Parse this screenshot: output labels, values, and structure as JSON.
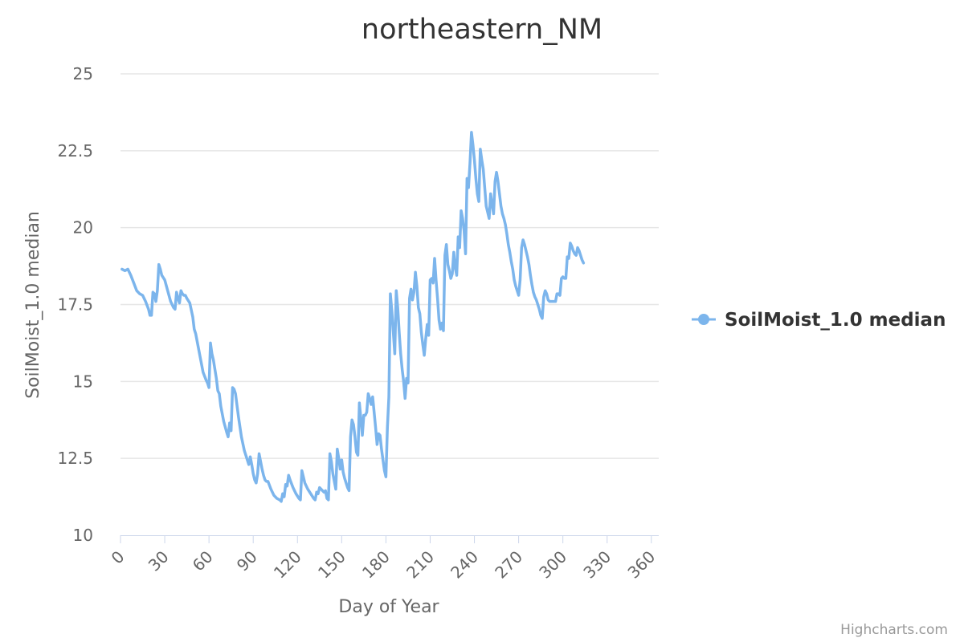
{
  "chart_data": {
    "type": "line",
    "title": "northeastern_NM",
    "xlabel": "Day of Year",
    "ylabel": "SoilMoist_1.0 median",
    "xlim": [
      0,
      365
    ],
    "ylim": [
      10,
      25
    ],
    "x_ticks": [
      "0",
      "30",
      "60",
      "90",
      "120",
      "150",
      "180",
      "210",
      "240",
      "270",
      "300",
      "330",
      "360"
    ],
    "y_ticks": [
      "10",
      "12.5",
      "15",
      "17.5",
      "20",
      "22.5",
      "25"
    ],
    "grid": "horizontal",
    "legend_position": "right",
    "series": [
      {
        "name": "SoilMoist_1.0 median",
        "color": "#7cb5ec",
        "points": [
          [
            1,
            18.65
          ],
          [
            3,
            18.6
          ],
          [
            5,
            18.65
          ],
          [
            7,
            18.45
          ],
          [
            9,
            18.2
          ],
          [
            11,
            17.95
          ],
          [
            13,
            17.85
          ],
          [
            15,
            17.8
          ],
          [
            17,
            17.6
          ],
          [
            19,
            17.35
          ],
          [
            20,
            17.15
          ],
          [
            21,
            17.15
          ],
          [
            22,
            17.9
          ],
          [
            23,
            17.85
          ],
          [
            24,
            17.6
          ],
          [
            25,
            17.95
          ],
          [
            26,
            18.8
          ],
          [
            27,
            18.65
          ],
          [
            28,
            18.45
          ],
          [
            30,
            18.3
          ],
          [
            32,
            17.95
          ],
          [
            34,
            17.6
          ],
          [
            36,
            17.4
          ],
          [
            37,
            17.35
          ],
          [
            38,
            17.9
          ],
          [
            39,
            17.7
          ],
          [
            40,
            17.55
          ],
          [
            41,
            17.95
          ],
          [
            42,
            17.85
          ],
          [
            43,
            17.8
          ],
          [
            44,
            17.8
          ],
          [
            45,
            17.7
          ],
          [
            47,
            17.55
          ],
          [
            49,
            17.1
          ],
          [
            50,
            16.7
          ],
          [
            51,
            16.55
          ],
          [
            52,
            16.3
          ],
          [
            54,
            15.8
          ],
          [
            56,
            15.3
          ],
          [
            58,
            15.05
          ],
          [
            59,
            14.95
          ],
          [
            60,
            14.8
          ],
          [
            61,
            16.25
          ],
          [
            62,
            15.9
          ],
          [
            63,
            15.7
          ],
          [
            65,
            15.1
          ],
          [
            66,
            14.7
          ],
          [
            67,
            14.6
          ],
          [
            68,
            14.2
          ],
          [
            70,
            13.7
          ],
          [
            72,
            13.35
          ],
          [
            73,
            13.2
          ],
          [
            74,
            13.65
          ],
          [
            75,
            13.4
          ],
          [
            76,
            14.8
          ],
          [
            77,
            14.75
          ],
          [
            78,
            14.6
          ],
          [
            80,
            13.85
          ],
          [
            82,
            13.2
          ],
          [
            84,
            12.75
          ],
          [
            86,
            12.45
          ],
          [
            87,
            12.3
          ],
          [
            88,
            12.55
          ],
          [
            89,
            12.3
          ],
          [
            90,
            12.0
          ],
          [
            91,
            11.8
          ],
          [
            92,
            11.7
          ],
          [
            93,
            12.0
          ],
          [
            94,
            12.65
          ],
          [
            95,
            12.4
          ],
          [
            96,
            12.15
          ],
          [
            97,
            11.95
          ],
          [
            98,
            11.8
          ],
          [
            99,
            11.75
          ],
          [
            100,
            11.75
          ],
          [
            102,
            11.5
          ],
          [
            104,
            11.3
          ],
          [
            106,
            11.2
          ],
          [
            108,
            11.15
          ],
          [
            109,
            11.1
          ],
          [
            110,
            11.35
          ],
          [
            111,
            11.25
          ],
          [
            112,
            11.65
          ],
          [
            113,
            11.6
          ],
          [
            114,
            11.95
          ],
          [
            115,
            11.8
          ],
          [
            117,
            11.55
          ],
          [
            119,
            11.35
          ],
          [
            121,
            11.2
          ],
          [
            122,
            11.15
          ],
          [
            123,
            12.1
          ],
          [
            124,
            11.9
          ],
          [
            125,
            11.7
          ],
          [
            127,
            11.5
          ],
          [
            129,
            11.35
          ],
          [
            131,
            11.2
          ],
          [
            132,
            11.15
          ],
          [
            133,
            11.4
          ],
          [
            134,
            11.35
          ],
          [
            135,
            11.55
          ],
          [
            136,
            11.5
          ],
          [
            137,
            11.45
          ],
          [
            138,
            11.4
          ],
          [
            139,
            11.45
          ],
          [
            140,
            11.2
          ],
          [
            141,
            11.15
          ],
          [
            142,
            12.65
          ],
          [
            143,
            12.4
          ],
          [
            144,
            12.0
          ],
          [
            145,
            11.75
          ],
          [
            146,
            11.5
          ],
          [
            147,
            12.8
          ],
          [
            148,
            12.5
          ],
          [
            149,
            12.15
          ],
          [
            150,
            12.45
          ],
          [
            151,
            12.05
          ],
          [
            152,
            11.85
          ],
          [
            154,
            11.55
          ],
          [
            155,
            11.45
          ],
          [
            156,
            13.2
          ],
          [
            157,
            13.75
          ],
          [
            158,
            13.6
          ],
          [
            159,
            13.2
          ],
          [
            160,
            12.7
          ],
          [
            161,
            12.6
          ],
          [
            162,
            14.3
          ],
          [
            163,
            13.8
          ],
          [
            164,
            13.25
          ],
          [
            165,
            13.9
          ],
          [
            166,
            13.9
          ],
          [
            167,
            14.0
          ],
          [
            168,
            14.6
          ],
          [
            169,
            14.45
          ],
          [
            170,
            14.25
          ],
          [
            171,
            14.5
          ],
          [
            172,
            14.0
          ],
          [
            173,
            13.5
          ],
          [
            174,
            12.95
          ],
          [
            175,
            13.3
          ],
          [
            176,
            13.25
          ],
          [
            177,
            12.8
          ],
          [
            178,
            12.45
          ],
          [
            179,
            12.1
          ],
          [
            180,
            11.9
          ],
          [
            181,
            13.5
          ],
          [
            182,
            14.5
          ],
          [
            183,
            17.85
          ],
          [
            184,
            17.3
          ],
          [
            185,
            16.6
          ],
          [
            186,
            15.9
          ],
          [
            187,
            17.95
          ],
          [
            188,
            17.4
          ],
          [
            189,
            16.6
          ],
          [
            190,
            15.9
          ],
          [
            191,
            15.4
          ],
          [
            192,
            15.0
          ],
          [
            193,
            14.45
          ],
          [
            194,
            15.1
          ],
          [
            195,
            14.95
          ],
          [
            196,
            17.7
          ],
          [
            197,
            18.0
          ],
          [
            198,
            17.65
          ],
          [
            199,
            17.9
          ],
          [
            200,
            18.55
          ],
          [
            201,
            18.1
          ],
          [
            202,
            17.4
          ],
          [
            203,
            17.2
          ],
          [
            204,
            16.6
          ],
          [
            205,
            16.2
          ],
          [
            206,
            15.85
          ],
          [
            207,
            16.4
          ],
          [
            208,
            16.85
          ],
          [
            209,
            16.5
          ],
          [
            210,
            18.3
          ],
          [
            211,
            18.35
          ],
          [
            212,
            18.2
          ],
          [
            213,
            19.0
          ],
          [
            214,
            18.3
          ],
          [
            215,
            17.7
          ],
          [
            216,
            17.0
          ],
          [
            217,
            16.7
          ],
          [
            218,
            16.9
          ],
          [
            219,
            16.65
          ],
          [
            220,
            19.1
          ],
          [
            221,
            19.45
          ],
          [
            222,
            18.8
          ],
          [
            223,
            18.6
          ],
          [
            224,
            18.35
          ],
          [
            225,
            18.5
          ],
          [
            226,
            19.2
          ],
          [
            227,
            18.7
          ],
          [
            228,
            18.45
          ],
          [
            229,
            19.7
          ],
          [
            230,
            19.35
          ],
          [
            231,
            20.55
          ],
          [
            232,
            20.3
          ],
          [
            233,
            19.9
          ],
          [
            234,
            19.15
          ],
          [
            235,
            21.6
          ],
          [
            236,
            21.3
          ],
          [
            237,
            22.1
          ],
          [
            238,
            23.1
          ],
          [
            239,
            22.7
          ],
          [
            240,
            22.2
          ],
          [
            241,
            21.6
          ],
          [
            242,
            21.1
          ],
          [
            243,
            20.85
          ],
          [
            244,
            22.55
          ],
          [
            245,
            22.2
          ],
          [
            246,
            21.9
          ],
          [
            247,
            21.3
          ],
          [
            248,
            20.7
          ],
          [
            249,
            20.5
          ],
          [
            250,
            20.3
          ],
          [
            251,
            21.1
          ],
          [
            252,
            20.75
          ],
          [
            253,
            20.45
          ],
          [
            254,
            21.5
          ],
          [
            255,
            21.8
          ],
          [
            256,
            21.5
          ],
          [
            257,
            21.1
          ],
          [
            258,
            20.7
          ],
          [
            259,
            20.45
          ],
          [
            260,
            20.3
          ],
          [
            261,
            20.1
          ],
          [
            262,
            19.8
          ],
          [
            263,
            19.45
          ],
          [
            264,
            19.2
          ],
          [
            265,
            18.9
          ],
          [
            266,
            18.65
          ],
          [
            267,
            18.3
          ],
          [
            268,
            18.1
          ],
          [
            269,
            17.95
          ],
          [
            270,
            17.8
          ],
          [
            271,
            18.3
          ],
          [
            272,
            19.35
          ],
          [
            273,
            19.6
          ],
          [
            274,
            19.45
          ],
          [
            275,
            19.25
          ],
          [
            276,
            19.05
          ],
          [
            277,
            18.8
          ],
          [
            278,
            18.45
          ],
          [
            279,
            18.15
          ],
          [
            280,
            17.9
          ],
          [
            281,
            17.75
          ],
          [
            282,
            17.65
          ],
          [
            283,
            17.5
          ],
          [
            284,
            17.35
          ],
          [
            285,
            17.15
          ],
          [
            286,
            17.05
          ],
          [
            287,
            17.75
          ],
          [
            288,
            17.95
          ],
          [
            289,
            17.85
          ],
          [
            290,
            17.65
          ],
          [
            291,
            17.6
          ],
          [
            293,
            17.6
          ],
          [
            295,
            17.6
          ],
          [
            296,
            17.85
          ],
          [
            297,
            17.85
          ],
          [
            298,
            17.8
          ],
          [
            299,
            18.35
          ],
          [
            300,
            18.4
          ],
          [
            301,
            18.35
          ],
          [
            302,
            18.35
          ],
          [
            303,
            19.05
          ],
          [
            304,
            19.0
          ],
          [
            305,
            19.5
          ],
          [
            306,
            19.4
          ],
          [
            307,
            19.25
          ],
          [
            308,
            19.15
          ],
          [
            309,
            19.1
          ],
          [
            310,
            19.35
          ],
          [
            311,
            19.25
          ],
          [
            312,
            19.1
          ],
          [
            313,
            18.95
          ],
          [
            314,
            18.85
          ]
        ]
      }
    ]
  },
  "credits": "Highcharts.com"
}
